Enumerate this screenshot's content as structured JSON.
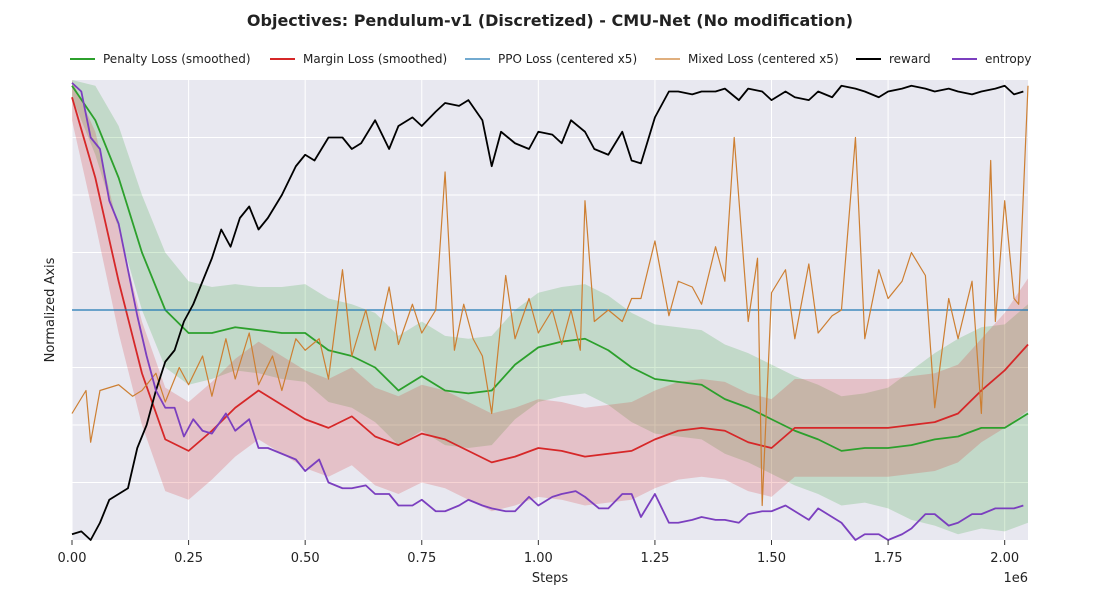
{
  "chart_data": {
    "type": "line",
    "title": "Objectives: Pendulum-v1 (Discretized) - CMU-Net (No modification)",
    "xlabel": "Steps",
    "ylabel": "Normalized Axis",
    "x_scale_label": "1e6",
    "x_ticks": [
      0,
      0.25,
      0.5,
      0.75,
      1.0,
      1.25,
      1.5,
      1.75,
      2.0
    ],
    "x_tick_labels": [
      "0.00",
      "0.25",
      "0.50",
      "0.75",
      "1.00",
      "1.25",
      "1.50",
      "1.75",
      "2.00"
    ],
    "xlim": [
      0,
      2.05
    ],
    "ylim": [
      0,
      8
    ],
    "y_ticks_labeled": false,
    "grid": true,
    "legend_position": "top",
    "reference_line_y": 4.0,
    "series": [
      {
        "name": "Penalty Loss (smoothed)",
        "color": "#2ca02c",
        "band": true,
        "x": [
          0,
          0.05,
          0.1,
          0.15,
          0.2,
          0.25,
          0.3,
          0.35,
          0.4,
          0.45,
          0.5,
          0.55,
          0.6,
          0.65,
          0.7,
          0.75,
          0.8,
          0.85,
          0.9,
          0.95,
          1.0,
          1.05,
          1.1,
          1.15,
          1.2,
          1.25,
          1.3,
          1.35,
          1.4,
          1.45,
          1.5,
          1.55,
          1.6,
          1.65,
          1.7,
          1.75,
          1.8,
          1.85,
          1.9,
          1.95,
          2.0,
          2.05
        ],
        "y": [
          7.9,
          7.3,
          6.3,
          5.0,
          4.0,
          3.6,
          3.6,
          3.7,
          3.65,
          3.6,
          3.6,
          3.3,
          3.2,
          3.0,
          2.6,
          2.85,
          2.6,
          2.55,
          2.6,
          3.05,
          3.35,
          3.45,
          3.5,
          3.3,
          3.0,
          2.8,
          2.75,
          2.7,
          2.45,
          2.3,
          2.1,
          1.9,
          1.75,
          1.55,
          1.6,
          1.6,
          1.65,
          1.75,
          1.8,
          1.95,
          1.95,
          2.2
        ],
        "band_half_width": [
          0.2,
          0.6,
          0.9,
          1.0,
          1.0,
          0.9,
          0.8,
          0.75,
          0.75,
          0.8,
          0.85,
          0.9,
          0.9,
          0.95,
          0.95,
          0.95,
          0.95,
          0.95,
          0.95,
          0.95,
          0.95,
          0.95,
          0.95,
          0.95,
          0.95,
          0.95,
          0.95,
          0.95,
          0.95,
          0.95,
          0.95,
          0.95,
          0.95,
          0.95,
          0.95,
          1.05,
          1.3,
          1.5,
          1.7,
          1.75,
          1.8,
          1.9
        ]
      },
      {
        "name": "Margin Loss (smoothed)",
        "color": "#d62728",
        "band": true,
        "x": [
          0,
          0.05,
          0.1,
          0.15,
          0.2,
          0.25,
          0.3,
          0.35,
          0.4,
          0.45,
          0.5,
          0.55,
          0.6,
          0.65,
          0.7,
          0.75,
          0.8,
          0.85,
          0.9,
          0.95,
          1.0,
          1.05,
          1.1,
          1.15,
          1.2,
          1.25,
          1.3,
          1.35,
          1.4,
          1.45,
          1.5,
          1.55,
          1.6,
          1.65,
          1.7,
          1.75,
          1.8,
          1.85,
          1.9,
          1.95,
          2.0,
          2.05
        ],
        "y": [
          7.7,
          6.3,
          4.5,
          2.9,
          1.75,
          1.55,
          1.9,
          2.3,
          2.6,
          2.35,
          2.1,
          1.95,
          2.15,
          1.8,
          1.65,
          1.85,
          1.75,
          1.55,
          1.35,
          1.45,
          1.6,
          1.55,
          1.45,
          1.5,
          1.55,
          1.75,
          1.9,
          1.95,
          1.9,
          1.7,
          1.6,
          1.95,
          1.95,
          1.95,
          1.95,
          1.95,
          2.0,
          2.05,
          2.2,
          2.6,
          2.95,
          3.4
        ],
        "band_half_width": [
          0.4,
          0.8,
          0.9,
          0.9,
          0.9,
          0.85,
          0.85,
          0.85,
          0.85,
          0.85,
          0.85,
          0.85,
          0.85,
          0.85,
          0.85,
          0.85,
          0.85,
          0.85,
          0.85,
          0.85,
          0.85,
          0.85,
          0.85,
          0.85,
          0.85,
          0.85,
          0.85,
          0.85,
          0.85,
          0.85,
          0.85,
          0.85,
          0.85,
          0.85,
          0.85,
          0.85,
          0.85,
          0.85,
          0.85,
          0.9,
          1.0,
          1.15
        ]
      },
      {
        "name": "PPO Loss (centered x5)",
        "color": "#1f77b4",
        "band": false,
        "x": [
          0,
          2.05
        ],
        "y": [
          4.0,
          4.0
        ]
      },
      {
        "name": "Mixed Loss (centered x5)",
        "color": "#cd7f32",
        "band": false,
        "x": [
          0,
          0.03,
          0.04,
          0.06,
          0.1,
          0.13,
          0.15,
          0.18,
          0.2,
          0.23,
          0.25,
          0.28,
          0.3,
          0.33,
          0.35,
          0.38,
          0.4,
          0.43,
          0.45,
          0.48,
          0.5,
          0.53,
          0.55,
          0.58,
          0.6,
          0.63,
          0.65,
          0.68,
          0.7,
          0.73,
          0.75,
          0.78,
          0.8,
          0.82,
          0.84,
          0.86,
          0.88,
          0.9,
          0.93,
          0.95,
          0.98,
          1.0,
          1.03,
          1.05,
          1.07,
          1.09,
          1.1,
          1.12,
          1.15,
          1.18,
          1.2,
          1.22,
          1.25,
          1.28,
          1.3,
          1.33,
          1.35,
          1.38,
          1.4,
          1.42,
          1.45,
          1.47,
          1.48,
          1.5,
          1.53,
          1.55,
          1.58,
          1.6,
          1.63,
          1.65,
          1.68,
          1.7,
          1.73,
          1.75,
          1.78,
          1.8,
          1.83,
          1.85,
          1.88,
          1.9,
          1.93,
          1.95,
          1.97,
          1.98,
          2.0,
          2.02,
          2.03,
          2.05
        ],
        "y": [
          2.2,
          2.6,
          1.7,
          2.6,
          2.7,
          2.5,
          2.6,
          2.9,
          2.4,
          3.0,
          2.7,
          3.2,
          2.5,
          3.5,
          2.8,
          3.6,
          2.7,
          3.2,
          2.6,
          3.5,
          3.3,
          3.5,
          2.8,
          4.7,
          3.2,
          4.0,
          3.3,
          4.4,
          3.4,
          4.1,
          3.6,
          4.0,
          6.4,
          3.3,
          4.1,
          3.5,
          3.2,
          2.2,
          4.6,
          3.5,
          4.2,
          3.6,
          4.0,
          3.4,
          4.0,
          3.3,
          5.9,
          3.8,
          4.0,
          3.8,
          4.2,
          4.2,
          5.2,
          3.9,
          4.5,
          4.4,
          4.1,
          5.1,
          4.5,
          7.0,
          3.8,
          4.9,
          0.6,
          4.3,
          4.7,
          3.5,
          4.8,
          3.6,
          3.9,
          4.0,
          7.0,
          3.5,
          4.7,
          4.2,
          4.5,
          5.0,
          4.6,
          2.3,
          4.2,
          3.5,
          4.5,
          2.2,
          6.6,
          3.8,
          5.9,
          4.2,
          4.1,
          7.9
        ]
      },
      {
        "name": "reward",
        "color": "#000000",
        "band": false,
        "x": [
          0,
          0.02,
          0.04,
          0.06,
          0.08,
          0.1,
          0.12,
          0.14,
          0.16,
          0.18,
          0.2,
          0.22,
          0.24,
          0.26,
          0.28,
          0.3,
          0.32,
          0.34,
          0.36,
          0.38,
          0.4,
          0.42,
          0.45,
          0.48,
          0.5,
          0.52,
          0.55,
          0.58,
          0.6,
          0.62,
          0.65,
          0.68,
          0.7,
          0.73,
          0.75,
          0.78,
          0.8,
          0.83,
          0.85,
          0.88,
          0.9,
          0.92,
          0.95,
          0.98,
          1.0,
          1.03,
          1.05,
          1.07,
          1.1,
          1.12,
          1.15,
          1.18,
          1.2,
          1.22,
          1.25,
          1.28,
          1.3,
          1.33,
          1.35,
          1.38,
          1.4,
          1.43,
          1.45,
          1.48,
          1.5,
          1.53,
          1.55,
          1.58,
          1.6,
          1.63,
          1.65,
          1.68,
          1.7,
          1.73,
          1.75,
          1.78,
          1.8,
          1.83,
          1.85,
          1.88,
          1.9,
          1.93,
          1.95,
          1.98,
          2.0,
          2.02,
          2.04
        ],
        "y": [
          0.1,
          0.15,
          0.0,
          0.3,
          0.7,
          0.8,
          0.9,
          1.6,
          2.0,
          2.6,
          3.1,
          3.3,
          3.8,
          4.1,
          4.5,
          4.9,
          5.4,
          5.1,
          5.6,
          5.8,
          5.4,
          5.6,
          6.0,
          6.5,
          6.7,
          6.6,
          7.0,
          7.0,
          6.8,
          6.9,
          7.3,
          6.8,
          7.2,
          7.35,
          7.2,
          7.45,
          7.6,
          7.55,
          7.65,
          7.3,
          6.5,
          7.1,
          6.9,
          6.8,
          7.1,
          7.05,
          6.9,
          7.3,
          7.1,
          6.8,
          6.7,
          7.1,
          6.6,
          6.55,
          7.35,
          7.8,
          7.8,
          7.75,
          7.8,
          7.8,
          7.85,
          7.65,
          7.85,
          7.8,
          7.65,
          7.8,
          7.7,
          7.65,
          7.8,
          7.7,
          7.9,
          7.85,
          7.8,
          7.7,
          7.8,
          7.85,
          7.9,
          7.85,
          7.8,
          7.85,
          7.8,
          7.75,
          7.8,
          7.85,
          7.9,
          7.75,
          7.8
        ]
      },
      {
        "name": "entropy",
        "color": "#7b3fbf",
        "band": false,
        "x": [
          0,
          0.02,
          0.04,
          0.06,
          0.08,
          0.1,
          0.12,
          0.14,
          0.16,
          0.18,
          0.2,
          0.22,
          0.24,
          0.26,
          0.28,
          0.3,
          0.33,
          0.35,
          0.38,
          0.4,
          0.42,
          0.45,
          0.48,
          0.5,
          0.53,
          0.55,
          0.58,
          0.6,
          0.63,
          0.65,
          0.68,
          0.7,
          0.73,
          0.75,
          0.78,
          0.8,
          0.83,
          0.85,
          0.88,
          0.9,
          0.93,
          0.95,
          0.98,
          1.0,
          1.03,
          1.05,
          1.08,
          1.1,
          1.13,
          1.15,
          1.18,
          1.2,
          1.22,
          1.25,
          1.28,
          1.3,
          1.33,
          1.35,
          1.38,
          1.4,
          1.43,
          1.45,
          1.48,
          1.5,
          1.53,
          1.55,
          1.58,
          1.6,
          1.63,
          1.65,
          1.68,
          1.7,
          1.73,
          1.75,
          1.78,
          1.8,
          1.83,
          1.85,
          1.88,
          1.9,
          1.93,
          1.95,
          1.98,
          2.0,
          2.02,
          2.04
        ],
        "y": [
          7.95,
          7.8,
          7.0,
          6.8,
          5.9,
          5.5,
          4.7,
          3.9,
          3.2,
          2.6,
          2.3,
          2.3,
          1.8,
          2.1,
          1.9,
          1.85,
          2.2,
          1.9,
          2.1,
          1.6,
          1.6,
          1.5,
          1.4,
          1.2,
          1.4,
          1.0,
          0.9,
          0.9,
          0.95,
          0.8,
          0.8,
          0.6,
          0.6,
          0.7,
          0.5,
          0.5,
          0.6,
          0.7,
          0.6,
          0.55,
          0.5,
          0.5,
          0.75,
          0.6,
          0.75,
          0.8,
          0.85,
          0.75,
          0.55,
          0.55,
          0.8,
          0.8,
          0.4,
          0.8,
          0.3,
          0.3,
          0.35,
          0.4,
          0.35,
          0.35,
          0.3,
          0.45,
          0.5,
          0.5,
          0.6,
          0.5,
          0.35,
          0.55,
          0.4,
          0.3,
          0.0,
          0.1,
          0.1,
          0.0,
          0.1,
          0.2,
          0.45,
          0.45,
          0.25,
          0.3,
          0.45,
          0.45,
          0.55,
          0.55,
          0.55,
          0.6
        ]
      }
    ]
  }
}
